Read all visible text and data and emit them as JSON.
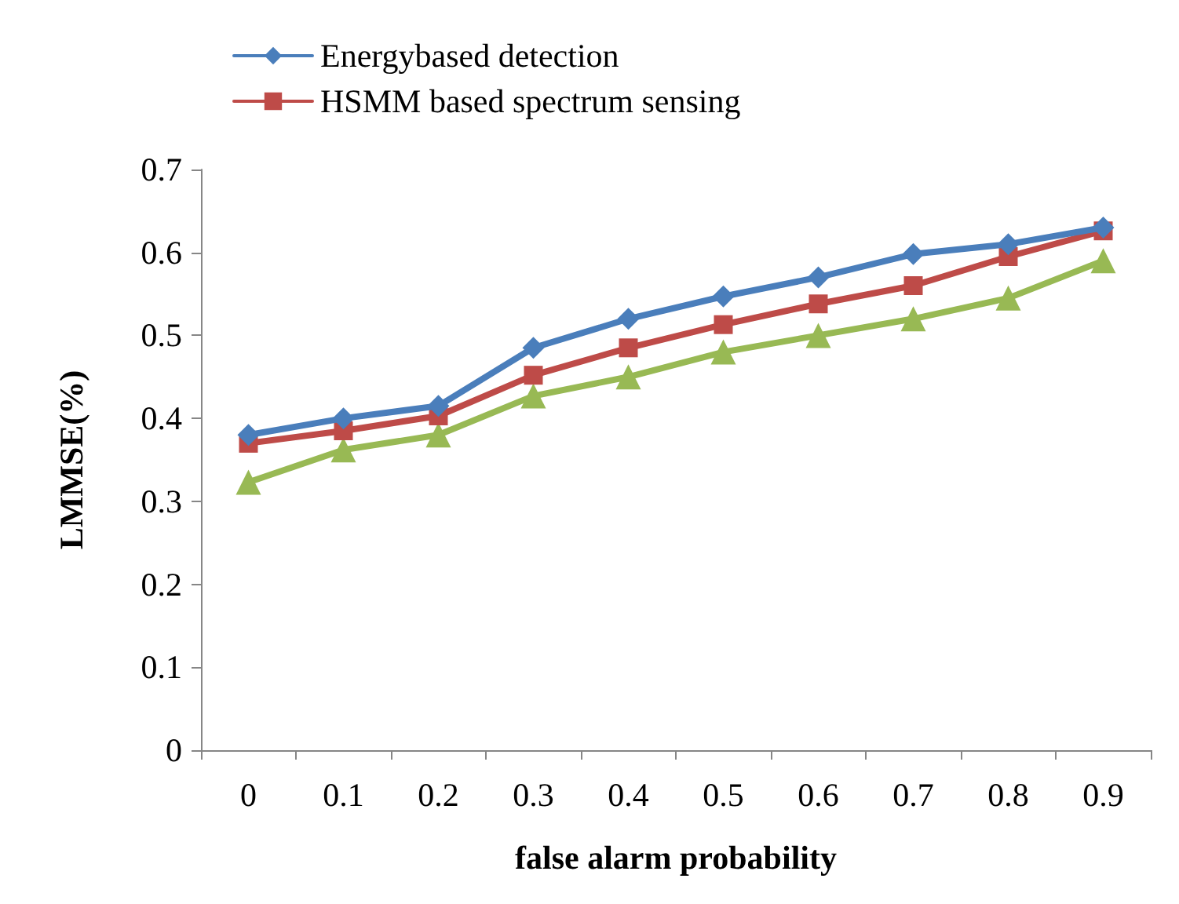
{
  "chart_data": {
    "type": "line",
    "xlabel": "false alarm probability",
    "ylabel": "LMMSE(%)",
    "categories": [
      "0",
      "0.1",
      "0.2",
      "0.3",
      "0.4",
      "0.5",
      "0.6",
      "0.7",
      "0.8",
      "0.9"
    ],
    "series": [
      {
        "name": "Energybased detection",
        "color": "#4a7ebb",
        "marker": "diamond",
        "values": [
          0.38,
          0.4,
          0.415,
          0.485,
          0.52,
          0.547,
          0.57,
          0.598,
          0.61,
          0.63
        ]
      },
      {
        "name": "HSMM based spectrum sensing",
        "color": "#be4b48",
        "marker": "square",
        "values": [
          0.37,
          0.385,
          0.403,
          0.452,
          0.485,
          0.513,
          0.538,
          0.56,
          0.595,
          0.626
        ]
      },
      {
        "color": "#98b954",
        "marker": "triangle",
        "values": [
          0.323,
          0.362,
          0.38,
          0.427,
          0.45,
          0.48,
          0.5,
          0.52,
          0.545,
          0.59
        ]
      }
    ],
    "ylim": [
      0,
      0.7
    ],
    "yticks": [
      0,
      0.1,
      0.2,
      0.3,
      0.4,
      0.5,
      0.6,
      0.7
    ],
    "grid": false,
    "legend": "top left",
    "line_style": "solid"
  }
}
